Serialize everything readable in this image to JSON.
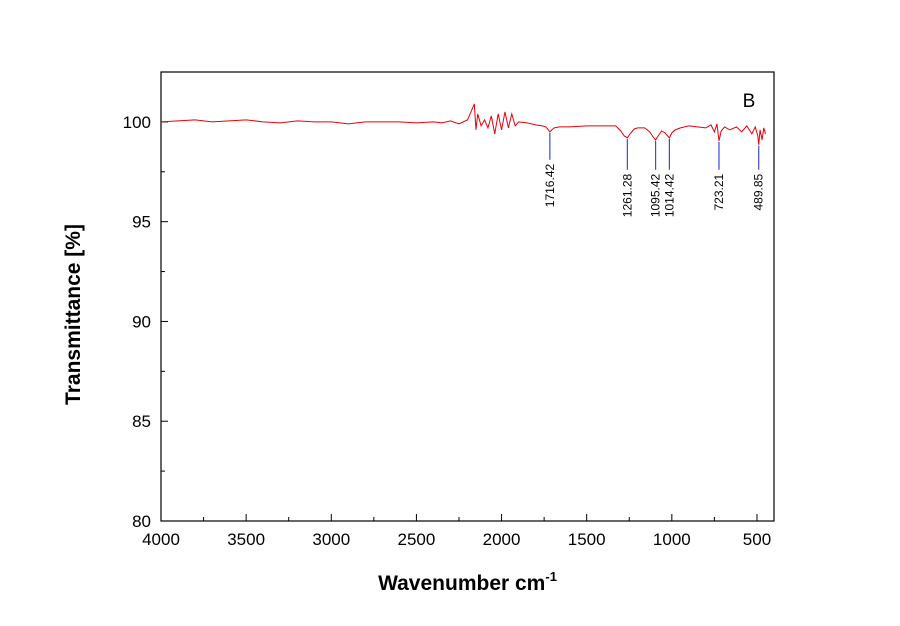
{
  "chart_data": {
    "type": "line",
    "panel_label": "B",
    "xlabel": "Wavenumber cm",
    "xlabel_superscript": "-1",
    "ylabel": "Transmittance [%]",
    "xlim": [
      4000,
      400
    ],
    "ylim": [
      80,
      102.5
    ],
    "x_reversed": true,
    "x_ticks": [
      4000,
      3500,
      3000,
      2500,
      2000,
      1500,
      1000,
      500
    ],
    "x_tick_labels": [
      "4000",
      "3500",
      "3000",
      "2500",
      "2000",
      "1500",
      "1000",
      "500"
    ],
    "y_ticks": [
      80,
      85,
      90,
      95,
      100
    ],
    "y_tick_labels": [
      "80",
      "85",
      "90",
      "95",
      "100"
    ],
    "grid": false,
    "legend": "none",
    "series": [
      {
        "color": "#e8000b",
        "x": [
          4000,
          3900,
          3800,
          3700,
          3600,
          3500,
          3400,
          3300,
          3200,
          3100,
          3000,
          2900,
          2800,
          2700,
          2600,
          2500,
          2400,
          2350,
          2300,
          2250,
          2200,
          2180,
          2160,
          2150,
          2140,
          2120,
          2100,
          2080,
          2060,
          2040,
          2020,
          2000,
          1980,
          1960,
          1940,
          1920,
          1900,
          1850,
          1800,
          1760,
          1740,
          1725,
          1716.42,
          1705,
          1690,
          1660,
          1600,
          1500,
          1400,
          1330,
          1300,
          1280,
          1261.28,
          1245,
          1220,
          1200,
          1160,
          1130,
          1110,
          1095.42,
          1080,
          1060,
          1040,
          1014.42,
          1000,
          980,
          950,
          900,
          850,
          800,
          770,
          750,
          735,
          723.21,
          710,
          690,
          660,
          620,
          590,
          560,
          530,
          510,
          495,
          489.85,
          482,
          470,
          460,
          450
        ],
        "y": [
          100.0,
          100.05,
          100.1,
          100.0,
          100.05,
          100.1,
          100.0,
          99.95,
          100.05,
          100.0,
          100.0,
          99.9,
          100.0,
          100.0,
          100.0,
          99.95,
          100.0,
          99.95,
          100.05,
          99.9,
          100.1,
          100.5,
          100.9,
          99.6,
          100.4,
          99.8,
          100.1,
          99.7,
          100.3,
          99.4,
          100.4,
          99.6,
          100.5,
          99.7,
          100.4,
          99.8,
          100.0,
          99.95,
          99.85,
          99.8,
          99.75,
          99.6,
          99.5,
          99.6,
          99.7,
          99.75,
          99.75,
          99.8,
          99.8,
          99.8,
          99.55,
          99.3,
          99.2,
          99.4,
          99.65,
          99.7,
          99.7,
          99.5,
          99.25,
          99.1,
          99.3,
          99.55,
          99.45,
          99.2,
          99.45,
          99.6,
          99.7,
          99.8,
          99.75,
          99.7,
          99.85,
          99.5,
          99.9,
          99.05,
          99.55,
          99.75,
          99.6,
          99.75,
          99.5,
          99.8,
          99.4,
          99.75,
          99.3,
          98.85,
          99.6,
          99.1,
          99.7,
          99.4
        ]
      }
    ],
    "annotations": [
      {
        "x": 1716.42,
        "label": "1716.42",
        "y_top": 99.45,
        "y_bottom": 98.1
      },
      {
        "x": 1261.28,
        "label": "1261.28",
        "y_top": 99.15,
        "y_bottom": 97.6
      },
      {
        "x": 1095.42,
        "label": "1095.42",
        "y_top": 99.05,
        "y_bottom": 97.6
      },
      {
        "x": 1014.42,
        "label": "1014.42",
        "y_top": 99.15,
        "y_bottom": 97.6
      },
      {
        "x": 723.21,
        "label": "723.21",
        "y_top": 99.0,
        "y_bottom": 97.6
      },
      {
        "x": 489.85,
        "label": "489.85",
        "y_top": 98.8,
        "y_bottom": 97.6
      }
    ],
    "annotation_color": "#3b4bd8"
  }
}
